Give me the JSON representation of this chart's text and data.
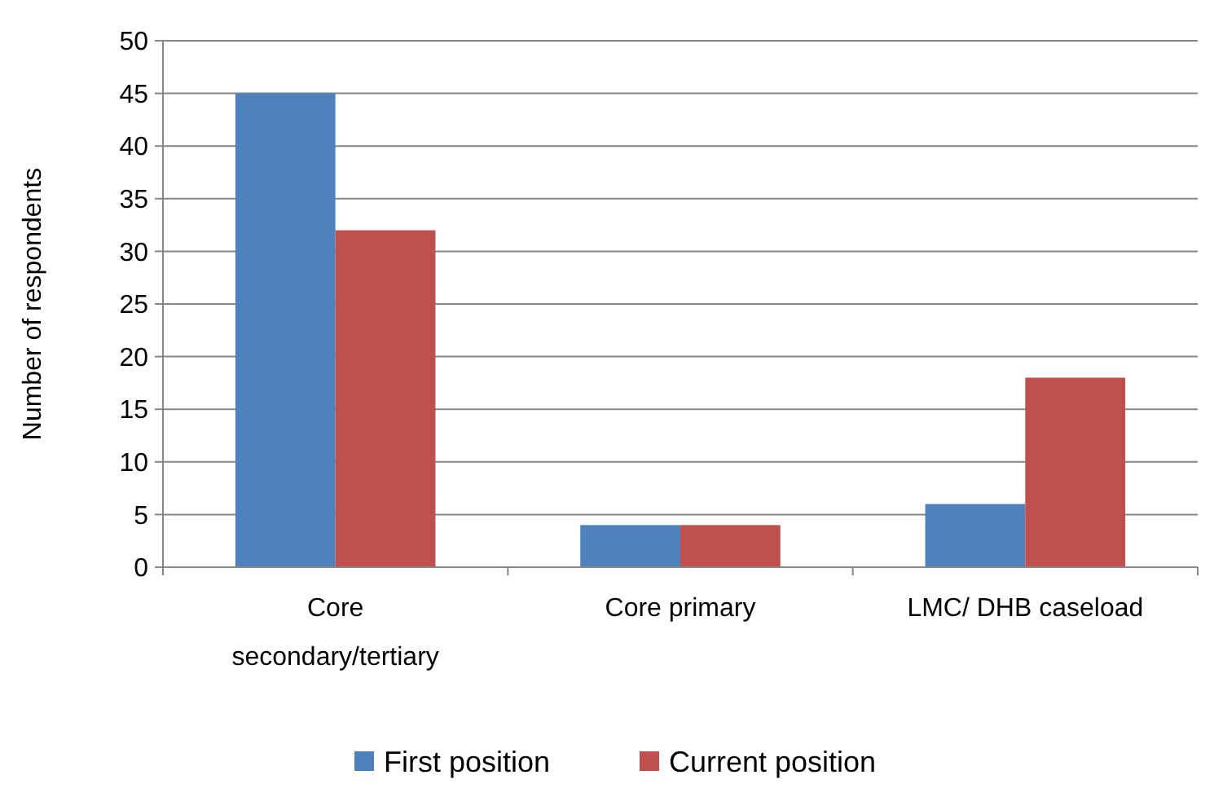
{
  "chart_data": {
    "type": "bar",
    "ylabel": "Number of respondents",
    "categories": [
      "Core secondary/tertiary",
      "Core primary",
      "LMC/ DHB caseload"
    ],
    "series": [
      {
        "name": "First position",
        "color": "#4f81bd",
        "values": [
          45,
          4,
          6
        ]
      },
      {
        "name": "Current position",
        "color": "#c0504d",
        "values": [
          32,
          4,
          18
        ]
      }
    ],
    "ylim": [
      0,
      50
    ],
    "yticks": [
      0,
      5,
      10,
      15,
      20,
      25,
      30,
      35,
      40,
      45,
      50
    ],
    "grid": "y",
    "legend": "bottom"
  }
}
